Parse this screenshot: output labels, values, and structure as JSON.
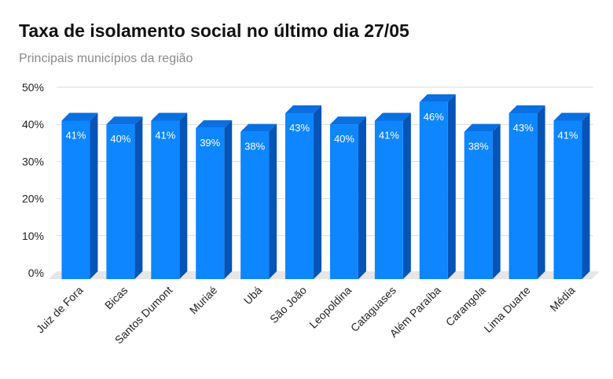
{
  "chart_data": {
    "type": "bar",
    "title": "Taxa de isolamento social no último dia 27/05",
    "subtitle": "Principais municípios da região",
    "categories": [
      "Juiz de Fora",
      "Bicas",
      "Santos Dumont",
      "Muriaé",
      "Ubá",
      "São João",
      "Leopoldina",
      "Cataguases",
      "Além Paraíba",
      "Carangola",
      "Lima Duarte",
      "Média"
    ],
    "values": [
      41,
      40,
      41,
      39,
      38,
      43,
      40,
      41,
      46,
      38,
      43,
      41
    ],
    "data_labels": [
      "41%",
      "40%",
      "41%",
      "39%",
      "38%",
      "43%",
      "40%",
      "41%",
      "46%",
      "38%",
      "43%",
      "41%"
    ],
    "y_ticks": [
      "0%",
      "10%",
      "20%",
      "30%",
      "40%",
      "50%"
    ],
    "ylim": [
      0,
      50
    ],
    "grid": true,
    "legend": "none",
    "colors": {
      "bar_front": "#0d86ff",
      "bar_side": "#0654b8",
      "bar_top": "#0a6fe0",
      "grid": "#d9d9d9",
      "floor": "#e6e6e6"
    }
  }
}
